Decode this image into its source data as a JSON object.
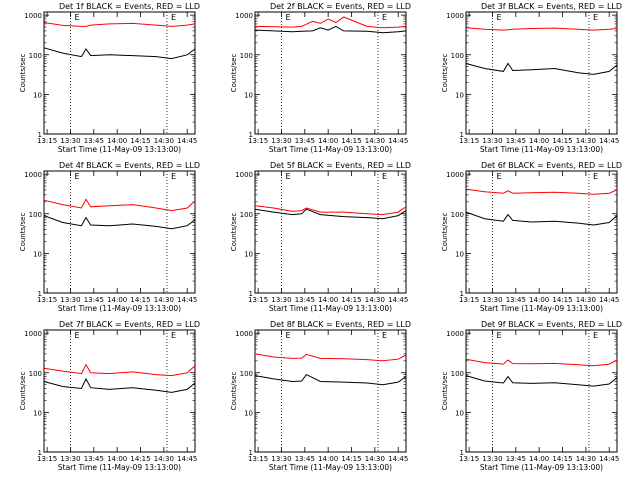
{
  "page": {
    "background": "#ffffff"
  },
  "styles": {
    "events_color": "#000000",
    "lld_color": "#ff0000",
    "axis_color": "#000000"
  },
  "shared": {
    "ylabel": "Counts/sec",
    "xlabel": "Start Time (11-May-09 13:13:00)",
    "x_ticks": [
      "13:15",
      "13:30",
      "13:45",
      "14:00",
      "14:15",
      "14:30",
      "14:45"
    ],
    "y_ticks": [
      "1",
      "10",
      "100",
      "1000"
    ],
    "marker": "E"
  },
  "chart_data": [
    {
      "type": "line",
      "title": "Det 1f BLACK = Events, RED = LLD",
      "ylabel": "Counts/sec",
      "xlabel": "Start Time (11-May-09 13:13:00)",
      "y_scale": "log",
      "ylim": [
        1,
        1200
      ],
      "xlim": [
        "13:13",
        "14:50"
      ],
      "grid": false,
      "markers": [
        "13:30",
        "14:32"
      ],
      "x": [
        "13:13",
        "13:25",
        "13:37",
        "13:40",
        "13:43",
        "13:55",
        "14:10",
        "14:25",
        "14:35",
        "14:45",
        "14:50"
      ],
      "series": [
        {
          "name": "Events",
          "color": "#000000",
          "values": [
            150,
            110,
            90,
            140,
            95,
            100,
            95,
            90,
            80,
            100,
            140
          ]
        },
        {
          "name": "LLD",
          "color": "#ff0000",
          "values": [
            650,
            550,
            520,
            520,
            560,
            600,
            620,
            560,
            520,
            560,
            600
          ]
        }
      ]
    },
    {
      "type": "line",
      "title": "Det 2f BLACK = Events, RED = LLD",
      "ylabel": "Counts/sec",
      "xlabel": "Start Time (11-May-09 13:13:00)",
      "y_scale": "log",
      "ylim": [
        1,
        1200
      ],
      "xlim": [
        "13:13",
        "14:50"
      ],
      "grid": false,
      "markers": [
        "13:30",
        "14:32"
      ],
      "x": [
        "13:13",
        "13:25",
        "13:37",
        "13:43",
        "13:50",
        "13:55",
        "14:00",
        "14:05",
        "14:10",
        "14:25",
        "14:35",
        "14:45",
        "14:50"
      ],
      "series": [
        {
          "name": "Events",
          "color": "#000000",
          "values": [
            420,
            400,
            380,
            390,
            400,
            480,
            420,
            520,
            400,
            390,
            360,
            380,
            400
          ]
        },
        {
          "name": "LLD",
          "color": "#ff0000",
          "values": [
            520,
            510,
            500,
            520,
            700,
            620,
            800,
            650,
            900,
            520,
            480,
            500,
            520
          ]
        }
      ]
    },
    {
      "type": "line",
      "title": "Det 3f BLACK = Events, RED = LLD",
      "ylabel": "Counts/sec",
      "xlabel": "Start Time (11-May-09 13:13:00)",
      "y_scale": "log",
      "ylim": [
        1,
        1200
      ],
      "xlim": [
        "13:13",
        "14:50"
      ],
      "grid": false,
      "markers": [
        "13:30",
        "14:32"
      ],
      "x": [
        "13:13",
        "13:25",
        "13:37",
        "13:40",
        "13:43",
        "13:55",
        "14:10",
        "14:25",
        "14:35",
        "14:45",
        "14:50"
      ],
      "series": [
        {
          "name": "Events",
          "color": "#000000",
          "values": [
            60,
            45,
            38,
            60,
            40,
            42,
            45,
            35,
            32,
            38,
            55
          ]
        },
        {
          "name": "LLD",
          "color": "#ff0000",
          "values": [
            480,
            440,
            420,
            430,
            440,
            460,
            470,
            440,
            420,
            440,
            460
          ]
        }
      ]
    },
    {
      "type": "line",
      "title": "Det 4f BLACK = Events, RED = LLD",
      "ylabel": "Counts/sec",
      "xlabel": "Start Time (11-May-09 13:13:00)",
      "y_scale": "log",
      "ylim": [
        1,
        1200
      ],
      "xlim": [
        "13:13",
        "14:50"
      ],
      "grid": false,
      "markers": [
        "13:30",
        "14:32"
      ],
      "x": [
        "13:13",
        "13:25",
        "13:37",
        "13:40",
        "13:43",
        "13:55",
        "14:10",
        "14:25",
        "14:35",
        "14:45",
        "14:50"
      ],
      "series": [
        {
          "name": "Events",
          "color": "#000000",
          "values": [
            90,
            60,
            50,
            80,
            52,
            50,
            55,
            48,
            42,
            50,
            70
          ]
        },
        {
          "name": "LLD",
          "color": "#ff0000",
          "values": [
            220,
            170,
            140,
            230,
            150,
            160,
            170,
            140,
            120,
            140,
            210
          ]
        }
      ]
    },
    {
      "type": "line",
      "title": "Det 5f BLACK = Events, RED = LLD",
      "ylabel": "Counts/sec",
      "xlabel": "Start Time (11-May-09 13:13:00)",
      "y_scale": "log",
      "ylim": [
        1,
        1200
      ],
      "xlim": [
        "13:13",
        "14:50"
      ],
      "grid": false,
      "markers": [
        "13:30",
        "14:32"
      ],
      "x": [
        "13:13",
        "13:25",
        "13:37",
        "13:43",
        "13:46",
        "13:55",
        "14:10",
        "14:25",
        "14:35",
        "14:45",
        "14:50"
      ],
      "series": [
        {
          "name": "Events",
          "color": "#000000",
          "values": [
            130,
            110,
            95,
            100,
            130,
            95,
            85,
            80,
            75,
            90,
            120
          ]
        },
        {
          "name": "LLD",
          "color": "#ff0000",
          "values": [
            160,
            140,
            115,
            120,
            140,
            110,
            110,
            100,
            95,
            110,
            150
          ]
        }
      ]
    },
    {
      "type": "line",
      "title": "Det 6f BLACK = Events, RED = LLD",
      "ylabel": "Counts/sec",
      "xlabel": "Start Time (11-May-09 13:13:00)",
      "y_scale": "log",
      "ylim": [
        1,
        1200
      ],
      "xlim": [
        "13:13",
        "14:50"
      ],
      "grid": false,
      "markers": [
        "13:30",
        "14:32"
      ],
      "x": [
        "13:13",
        "13:25",
        "13:37",
        "13:40",
        "13:43",
        "13:55",
        "14:10",
        "14:25",
        "14:35",
        "14:45",
        "14:50"
      ],
      "series": [
        {
          "name": "Events",
          "color": "#000000",
          "values": [
            110,
            75,
            65,
            95,
            68,
            62,
            65,
            58,
            52,
            60,
            90
          ]
        },
        {
          "name": "LLD",
          "color": "#ff0000",
          "values": [
            420,
            360,
            330,
            380,
            330,
            340,
            350,
            330,
            310,
            330,
            400
          ]
        }
      ]
    },
    {
      "type": "line",
      "title": "Det 7f BLACK = Events, RED = LLD",
      "ylabel": "Counts/sec",
      "xlabel": "Start Time (11-May-09 13:13:00)",
      "y_scale": "log",
      "ylim": [
        1,
        1200
      ],
      "xlim": [
        "13:13",
        "14:50"
      ],
      "grid": false,
      "markers": [
        "13:30",
        "14:32"
      ],
      "x": [
        "13:13",
        "13:25",
        "13:37",
        "13:40",
        "13:43",
        "13:55",
        "14:10",
        "14:25",
        "14:35",
        "14:45",
        "14:50"
      ],
      "series": [
        {
          "name": "Events",
          "color": "#000000",
          "values": [
            60,
            45,
            40,
            70,
            42,
            38,
            42,
            36,
            32,
            38,
            55
          ]
        },
        {
          "name": "LLD",
          "color": "#ff0000",
          "values": [
            130,
            110,
            95,
            160,
            100,
            95,
            105,
            90,
            85,
            100,
            150
          ]
        }
      ]
    },
    {
      "type": "line",
      "title": "Det 8f BLACK = Events, RED = LLD",
      "ylabel": "Counts/sec",
      "xlabel": "Start Time (11-May-09 13:13:00)",
      "y_scale": "log",
      "ylim": [
        1,
        1200
      ],
      "xlim": [
        "13:13",
        "14:50"
      ],
      "grid": false,
      "markers": [
        "13:30",
        "14:32"
      ],
      "x": [
        "13:13",
        "13:25",
        "13:37",
        "13:43",
        "13:46",
        "13:55",
        "14:10",
        "14:25",
        "14:35",
        "14:45",
        "14:50"
      ],
      "series": [
        {
          "name": "Events",
          "color": "#000000",
          "values": [
            85,
            70,
            60,
            62,
            90,
            60,
            58,
            55,
            50,
            58,
            80
          ]
        },
        {
          "name": "LLD",
          "color": "#ff0000",
          "values": [
            300,
            250,
            230,
            235,
            290,
            230,
            225,
            215,
            200,
            220,
            280
          ]
        }
      ]
    },
    {
      "type": "line",
      "title": "Det 9f BLACK = Events, RED = LLD",
      "ylabel": "Counts/sec",
      "xlabel": "Start Time (11-May-09 13:13:00)",
      "y_scale": "log",
      "ylim": [
        1,
        1200
      ],
      "xlim": [
        "13:13",
        "14:50"
      ],
      "grid": false,
      "markers": [
        "13:30",
        "14:32"
      ],
      "x": [
        "13:13",
        "13:25",
        "13:37",
        "13:40",
        "13:43",
        "13:55",
        "14:10",
        "14:25",
        "14:35",
        "14:45",
        "14:50"
      ],
      "series": [
        {
          "name": "Events",
          "color": "#000000",
          "values": [
            85,
            62,
            55,
            80,
            56,
            54,
            56,
            50,
            46,
            52,
            75
          ]
        },
        {
          "name": "LLD",
          "color": "#ff0000",
          "values": [
            220,
            180,
            165,
            210,
            170,
            168,
            172,
            160,
            150,
            165,
            210
          ]
        }
      ]
    }
  ]
}
